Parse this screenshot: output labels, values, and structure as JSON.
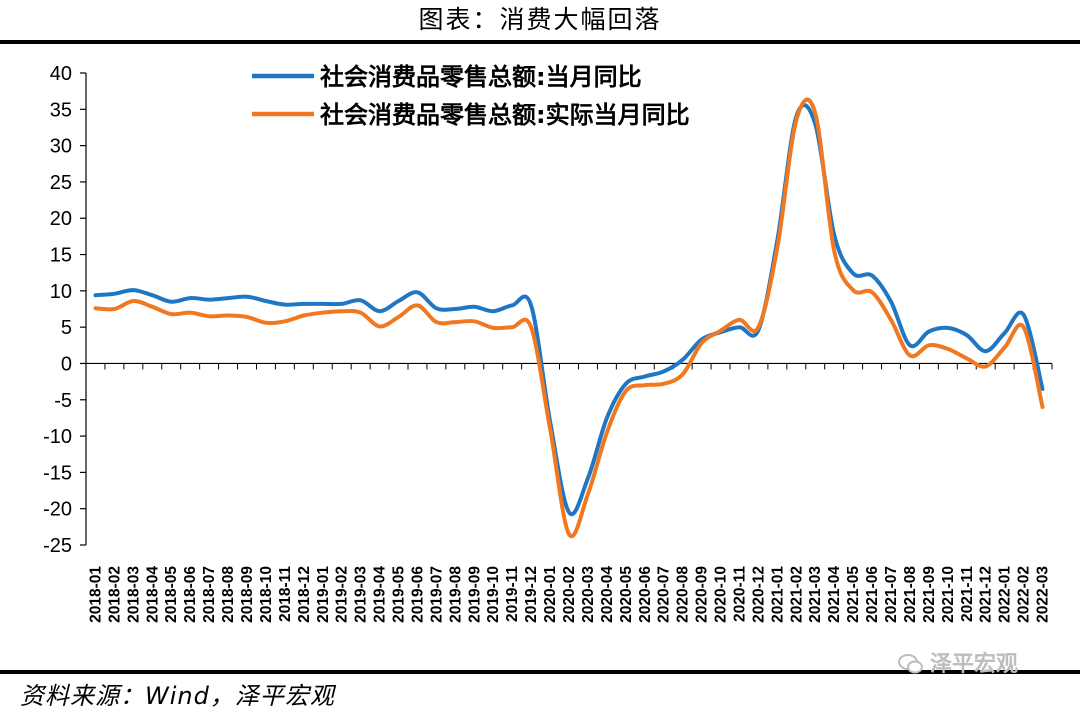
{
  "figure": {
    "title": "图表：消费大幅回落",
    "source": "资料来源：Wind，泽平宏观",
    "watermark": "泽平宏观",
    "watermark_icon": "wechat-icon"
  },
  "chart_data": {
    "type": "line",
    "title": "",
    "xlabel": "",
    "ylabel": "",
    "ylim": [
      -25,
      40
    ],
    "yticks": [
      40,
      35,
      30,
      25,
      20,
      15,
      10,
      5,
      0,
      -5,
      -10,
      -15,
      -20,
      -25
    ],
    "grid": false,
    "legend_position": "top-center",
    "categories": [
      "2018-01",
      "2018-02",
      "2018-03",
      "2018-04",
      "2018-05",
      "2018-06",
      "2018-07",
      "2018-08",
      "2018-09",
      "2018-10",
      "2018-11",
      "2018-12",
      "2019-01",
      "2019-02",
      "2019-03",
      "2019-04",
      "2019-05",
      "2019-06",
      "2019-07",
      "2019-08",
      "2019-09",
      "2019-10",
      "2019-11",
      "2019-12",
      "2020-01",
      "2020-02",
      "2020-03",
      "2020-04",
      "2020-05",
      "2020-06",
      "2020-07",
      "2020-08",
      "2020-09",
      "2020-10",
      "2020-11",
      "2020-12",
      "2021-01",
      "2021-02",
      "2021-03",
      "2021-04",
      "2021-05",
      "2021-06",
      "2021-07",
      "2021-08",
      "2021-09",
      "2021-10",
      "2021-11",
      "2021-12",
      "2022-01",
      "2022-02",
      "2022-03"
    ],
    "series": [
      {
        "name": "社会消费品零售总额:当月同比",
        "color": "#1f77c4",
        "values": [
          9.4,
          9.6,
          10.1,
          9.4,
          8.5,
          9.0,
          8.8,
          9.0,
          9.2,
          8.6,
          8.1,
          8.2,
          8.2,
          8.2,
          8.7,
          7.2,
          8.6,
          9.8,
          7.6,
          7.5,
          7.8,
          7.2,
          8.0,
          8.0,
          -8.0,
          -20.5,
          -15.8,
          -7.5,
          -2.8,
          -1.8,
          -1.1,
          0.5,
          3.3,
          4.3,
          5.0,
          4.6,
          17.0,
          34.0,
          33.0,
          17.7,
          12.4,
          12.1,
          8.5,
          2.5,
          4.4,
          4.9,
          3.9,
          1.7,
          4.2,
          6.7,
          -3.5
        ]
      },
      {
        "name": "社会消费品零售总额:实际当月同比",
        "color": "#f07820",
        "values": [
          7.6,
          7.5,
          8.6,
          7.8,
          6.8,
          7.0,
          6.5,
          6.6,
          6.4,
          5.6,
          5.8,
          6.6,
          7.0,
          7.2,
          7.0,
          5.1,
          6.4,
          8.0,
          5.7,
          5.7,
          5.8,
          4.9,
          5.0,
          5.0,
          -9.0,
          -23.5,
          -18.0,
          -9.5,
          -3.8,
          -3.0,
          -2.8,
          -1.5,
          2.8,
          4.5,
          6.0,
          5.0,
          16.0,
          33.5,
          34.5,
          15.5,
          10.1,
          9.8,
          6.0,
          1.1,
          2.5,
          2.0,
          0.7,
          -0.4,
          2.2,
          5.0,
          -6.0
        ]
      }
    ]
  }
}
